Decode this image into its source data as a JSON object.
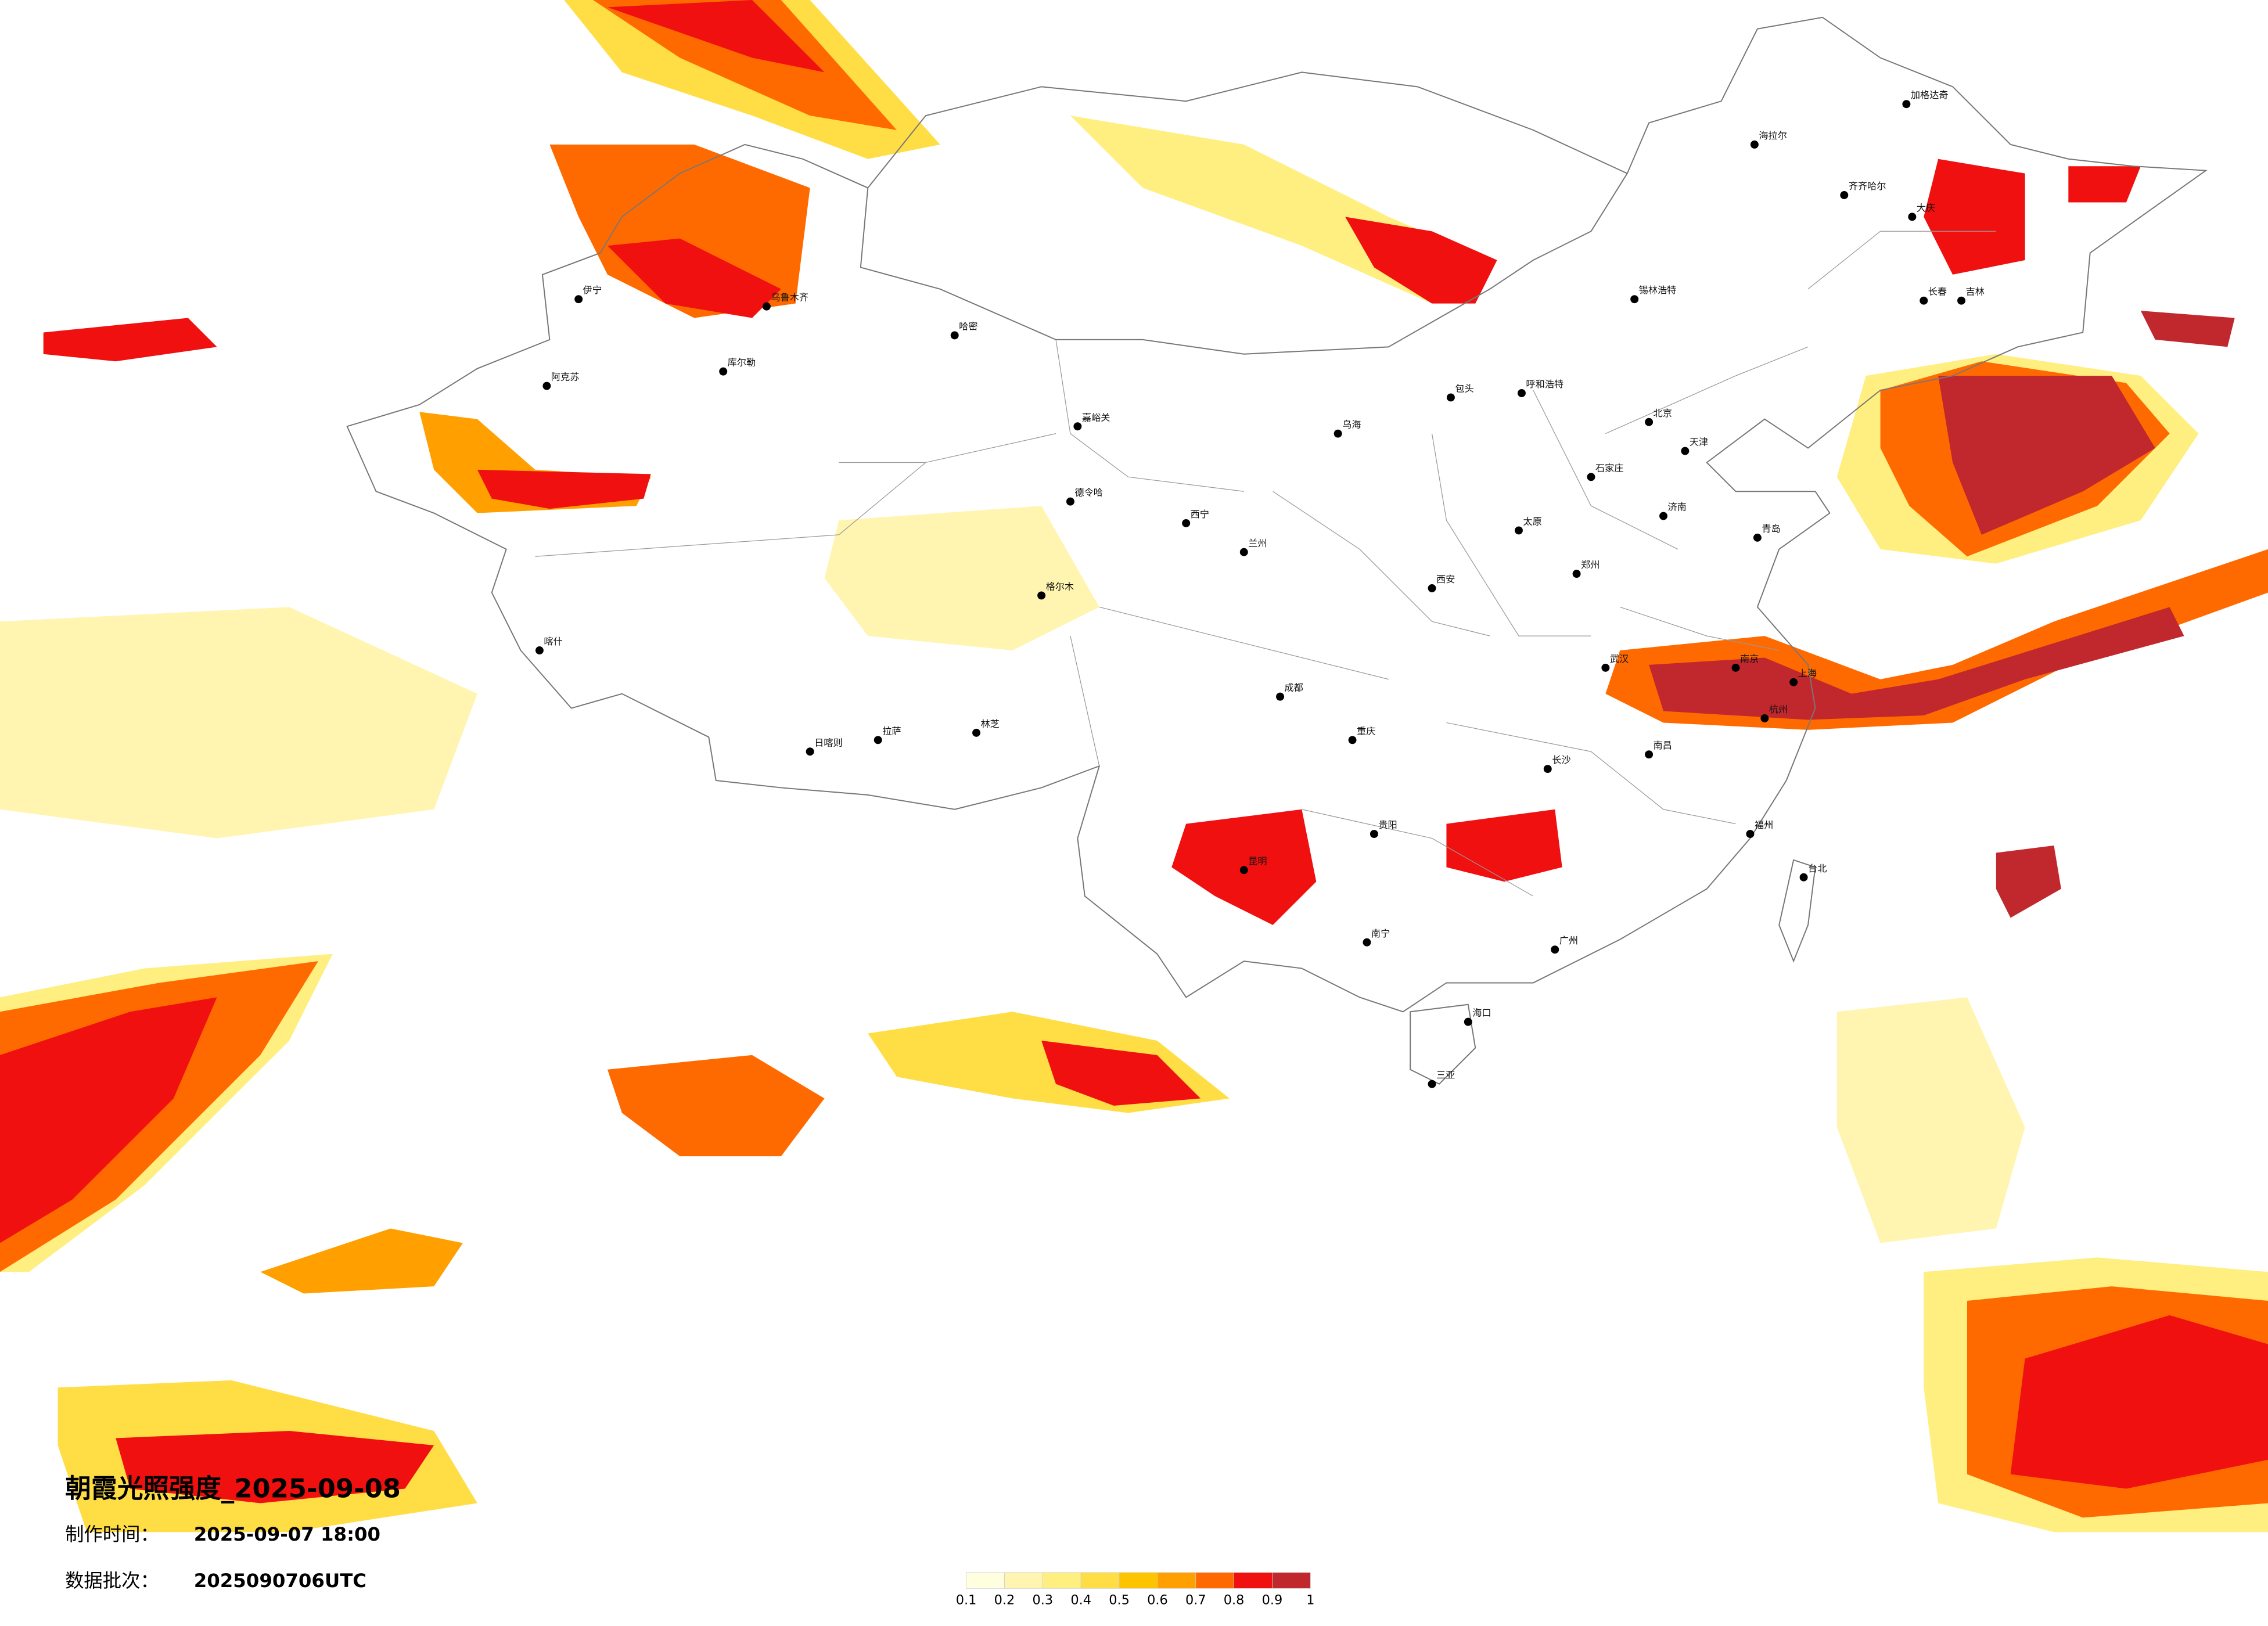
{
  "title": "朝霞光照强度_2025-09-08",
  "made_label": "制作时间：",
  "made_time": "2025-09-07 18:00",
  "batch_label": "数据批次：",
  "batch": "2025090706UTC",
  "legend": {
    "ticks": [
      0.1,
      0.2,
      0.3,
      0.4,
      0.5,
      0.6,
      0.7,
      0.8,
      0.9,
      1
    ],
    "colors": [
      "#ffffe0",
      "#fff5b0",
      "#ffee80",
      "#ffde45",
      "#ffc400",
      "#ffa000",
      "#ff6a00",
      "#f01010",
      "#c0282d"
    ]
  },
  "cities": [
    "海拉尔",
    "加格达奇",
    "齐齐哈尔",
    "大庆",
    "长春",
    "吉林",
    "锡林浩特",
    "呼和浩特",
    "包头",
    "乌海",
    "北京",
    "天津",
    "石家庄",
    "太原",
    "济南",
    "青岛",
    "郑州",
    "西安",
    "兰州",
    "西宁",
    "成都",
    "重庆",
    "贵阳",
    "昆明",
    "南宁",
    "广州",
    "武汉",
    "长沙",
    "南昌",
    "上海",
    "南京",
    "杭州",
    "福州",
    "台北",
    "海口",
    "三亚",
    "拉萨",
    "日喀则",
    "格尔木",
    "喀什",
    "乌鲁木齐",
    "伊宁",
    "库尔勒",
    "哈密",
    "嘉峪关",
    "德令哈",
    "林芝",
    "阿克苏"
  ]
}
